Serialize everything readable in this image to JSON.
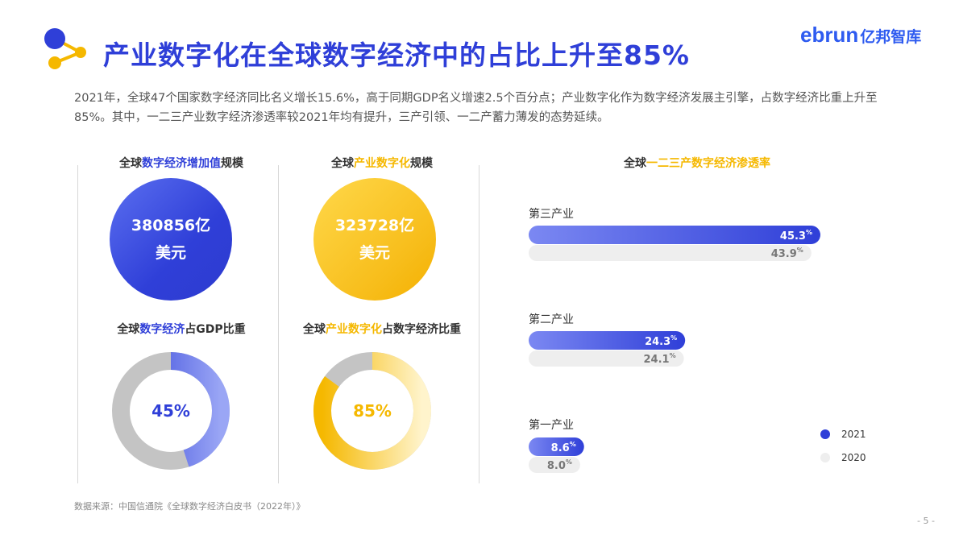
{
  "header": {
    "title": "产业数字化在全球数字经济中的占比上升至85%",
    "logo_en": "ebrun",
    "logo_cn": "亿邦智库"
  },
  "intro": "2021年，全球47个国家数字经济同比名义增长15.6%，高于同期GDP名义增速2.5个百分点；产业数字化作为数字经济发展主引擎，占数字经济比重上升至85%。其中，一二三产业数字经济渗透率较2021年均有提升，三产引领、一二产蓄力薄发的态势延续。",
  "colors": {
    "blue": "#2f3fd8",
    "yellow": "#f5b800",
    "gray": "#c4c4c4"
  },
  "panels": {
    "scale_blue": {
      "pre": "全球",
      "hl": "数字经济增加值",
      "post": "规模",
      "value": "380856亿",
      "unit": "美元"
    },
    "scale_yellow": {
      "pre": "全球",
      "hl": "产业数字化",
      "post": "规模",
      "value": "323728亿",
      "unit": "美元"
    },
    "share_blue": {
      "pre": "全球",
      "hl": "数字经济",
      "post": "占GDP比重",
      "value": "45%"
    },
    "share_yellow": {
      "pre": "全球",
      "hl": "产业数字化",
      "post": "占数字经济比重",
      "value": "85%"
    },
    "penetration": {
      "pre": "全球",
      "hl": "一二三产数字经济渗透率"
    }
  },
  "chart_data": [
    {
      "type": "pie",
      "title": "全球数字经济占GDP比重",
      "values": [
        45,
        55
      ],
      "color": "#2f3fd8"
    },
    {
      "type": "pie",
      "title": "全球产业数字化占数字经济比重",
      "values": [
        85,
        15
      ],
      "color": "#f5b800"
    },
    {
      "type": "bar",
      "title": "全球一二三产数字经济渗透率",
      "categories": [
        "第三产业",
        "第二产业",
        "第一产业"
      ],
      "series": [
        {
          "name": "2021",
          "values": [
            45.3,
            24.3,
            8.6
          ]
        },
        {
          "name": "2020",
          "values": [
            43.9,
            24.1,
            8.0
          ]
        }
      ],
      "unit": "%",
      "legend": "bottom-right"
    }
  ],
  "source": "数据来源：中国信通院《全球数字经济白皮书（2022年）》",
  "page_number": "- 5 -"
}
